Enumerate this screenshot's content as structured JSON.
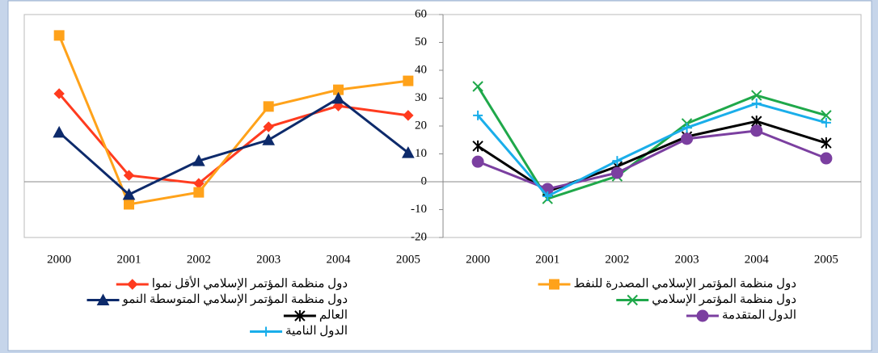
{
  "chart_data": [
    {
      "type": "line",
      "categories": [
        "2000",
        "2001",
        "2002",
        "2003",
        "2004",
        "2005"
      ],
      "ylim": [
        -20,
        60
      ],
      "series": [
        {
          "name": "دول منظمة المؤتمر الإسلامي الأقل نموا",
          "color": "#ff3b1f",
          "marker": "diamond",
          "values": [
            31.6,
            2.3,
            -0.6,
            19.7,
            27.2,
            23.8
          ]
        },
        {
          "name": "دول منظمة المؤتمر الإسلامي المصدرة للنفط",
          "color": "#ffa21a",
          "marker": "square",
          "values": [
            52.5,
            -8.1,
            -3.8,
            27,
            33,
            36.2
          ]
        },
        {
          "name": "دول منظمة المؤتمر الإسلامي المتوسطة النمو",
          "color": "#0d2a6b",
          "marker": "triangle",
          "values": [
            17.7,
            -4.6,
            7.5,
            15,
            29.9,
            10.4
          ]
        }
      ]
    },
    {
      "type": "line",
      "categories": [
        "2000",
        "2001",
        "2002",
        "2003",
        "2004",
        "2005"
      ],
      "ylim": [
        -20,
        60
      ],
      "yticks": [
        -20,
        -10,
        0,
        10,
        20,
        30,
        40,
        50,
        60
      ],
      "series": [
        {
          "name": "دول منظمة المؤتمر الإسلامي",
          "color": "#1fa84a",
          "marker": "x",
          "values": [
            34.2,
            -6.1,
            2,
            20.9,
            31,
            23.8
          ]
        },
        {
          "name": "العالم",
          "color": "#000000",
          "marker": "star",
          "values": [
            12.8,
            -3.5,
            5.5,
            16.2,
            21.7,
            13.9
          ]
        },
        {
          "name": "الدول المتقدمة",
          "color": "#7b3fa0",
          "marker": "circle",
          "values": [
            7.2,
            -2.6,
            3.2,
            15.4,
            18.3,
            8.4
          ]
        },
        {
          "name": "الدول النامية",
          "color": "#1aaeea",
          "marker": "plus",
          "values": [
            23.8,
            -5.2,
            7.5,
            19.4,
            28.1,
            21.2
          ]
        }
      ]
    }
  ]
}
